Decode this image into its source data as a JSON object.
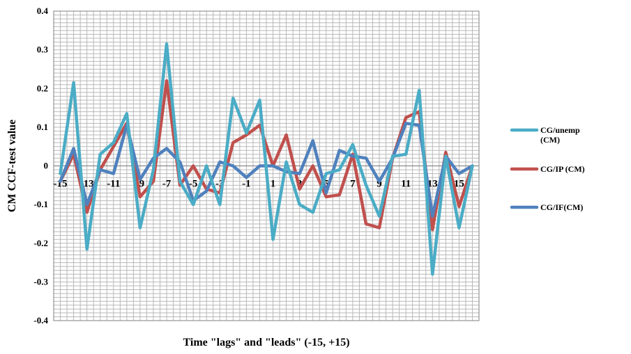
{
  "chart_data": {
    "type": "line",
    "title": "",
    "xlabel": "Time \"lags\" and \"leads\" (-15, +15)",
    "ylabel": "CM CCF-test value",
    "ylim": [
      -0.4,
      0.4
    ],
    "yticks": [
      0.4,
      0.3,
      0.2,
      0.1,
      0,
      -0.1,
      -0.2,
      -0.3,
      -0.4
    ],
    "ytick_labels": [
      "0.4",
      "0.3",
      "0.2",
      "0.1",
      "0",
      "-0.1",
      "-0.2",
      "-0.3",
      "-0.4"
    ],
    "xtick_labels": [
      "-15",
      "-13",
      "-11",
      "-9",
      "-7",
      "-5",
      "-3",
      "-1",
      "1",
      "3",
      "5",
      "7",
      "9",
      "11",
      "13",
      "15"
    ],
    "xtick_values": [
      -15,
      -13,
      -11,
      -9,
      -7,
      -5,
      -3,
      -1,
      1,
      3,
      5,
      7,
      9,
      11,
      13,
      15
    ],
    "grid": true,
    "legend_position": "right",
    "x": [
      -15,
      -14,
      -13,
      -12,
      -11,
      -10,
      -9,
      -8,
      -7,
      -6,
      -5,
      -4,
      -3,
      -2,
      -1,
      0,
      1,
      2,
      3,
      4,
      5,
      6,
      7,
      8,
      9,
      10,
      11,
      12,
      13,
      14,
      15,
      16
    ],
    "series": [
      {
        "name": "CG/unemp (CM)",
        "color": "#4BACC6",
        "values": [
          -0.02,
          0.215,
          -0.215,
          0.03,
          0.06,
          0.135,
          -0.16,
          -0.01,
          0.315,
          -0.04,
          -0.1,
          0,
          -0.1,
          0.175,
          0.085,
          0.17,
          -0.19,
          0.01,
          -0.1,
          -0.12,
          -0.02,
          -0.01,
          0.055,
          -0.05,
          -0.13,
          0.025,
          0.03,
          0.195,
          -0.28,
          0.025,
          -0.16,
          0
        ]
      },
      {
        "name": "CG/IP (CM)",
        "color": "#C0504D",
        "values": [
          -0.04,
          0.03,
          -0.12,
          -0.01,
          0.05,
          0.11,
          -0.08,
          -0.04,
          0.22,
          -0.05,
          0,
          -0.06,
          -0.07,
          0.06,
          0.08,
          0.105,
          0,
          0.08,
          -0.06,
          0,
          -0.08,
          -0.075,
          0.03,
          -0.15,
          -0.16,
          0.02,
          0.125,
          0.14,
          -0.165,
          0.035,
          -0.105,
          0
        ]
      },
      {
        "name": "CG/IF(CM)",
        "color": "#4F81BD",
        "values": [
          -0.04,
          0.045,
          -0.1,
          -0.01,
          -0.02,
          0.105,
          -0.035,
          0.02,
          0.045,
          0.01,
          -0.09,
          -0.065,
          0.01,
          0,
          -0.03,
          0,
          0,
          -0.015,
          -0.02,
          0.065,
          -0.07,
          0.04,
          0.025,
          0.02,
          -0.04,
          0.02,
          0.11,
          0.105,
          -0.13,
          0.025,
          -0.02,
          0
        ]
      }
    ]
  }
}
